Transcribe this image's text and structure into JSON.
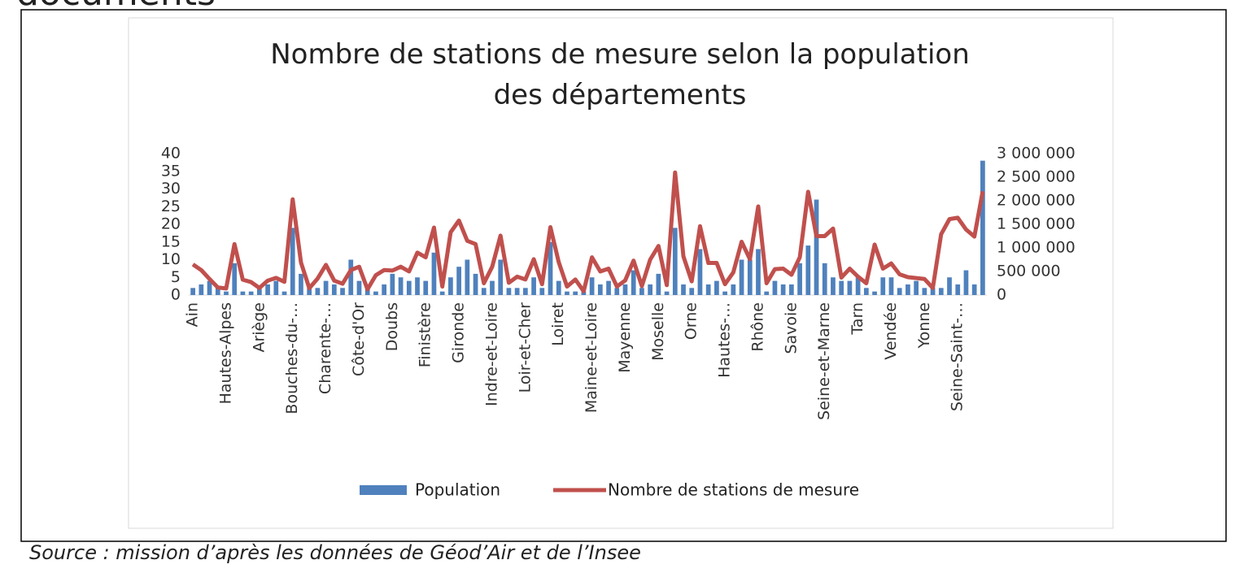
{
  "heading": "documents",
  "source": "Source : mission d’après les données de Géod’Air et de l’Insee",
  "chart_data": {
    "type": "bar",
    "title": [
      "Nombre de stations de mesure selon la population",
      "des départements"
    ],
    "categories": [
      "Ain",
      null,
      null,
      null,
      "Hautes-Alpes",
      null,
      null,
      null,
      "Ariège",
      null,
      null,
      null,
      "Bouches-du-…",
      null,
      null,
      null,
      "Charente-…",
      null,
      null,
      null,
      "Côte-d'Or",
      null,
      null,
      null,
      "Doubs",
      null,
      null,
      null,
      "Finistère",
      null,
      null,
      null,
      "Gironde",
      null,
      null,
      null,
      "Indre-et-Loire",
      null,
      null,
      null,
      "Loir-et-Cher",
      null,
      null,
      null,
      "Loiret",
      null,
      null,
      null,
      "Maine-et-Loire",
      null,
      null,
      null,
      "Mayenne",
      null,
      null,
      null,
      "Moselle",
      null,
      null,
      null,
      "Orne",
      null,
      null,
      null,
      "Hautes-…",
      null,
      null,
      null,
      "Rhône",
      null,
      null,
      null,
      "Savoie",
      null,
      null,
      null,
      "Seine-et-Marne",
      null,
      null,
      null,
      "Tarn",
      null,
      null,
      null,
      "Vendée",
      null,
      null,
      null,
      "Yonne",
      null,
      null,
      null,
      "Seine-Saint-…",
      null,
      null,
      null
    ],
    "series": [
      {
        "name": "Population",
        "color": "#4f81bd",
        "type": "bar",
        "values": [
          2,
          3,
          4,
          2,
          1,
          9,
          1,
          1,
          2,
          3,
          4,
          1,
          19,
          6,
          2,
          2,
          4,
          3,
          2,
          10,
          4,
          2,
          1,
          3,
          6,
          5,
          4,
          5,
          4,
          12,
          1,
          5,
          8,
          10,
          6,
          2,
          4,
          10,
          2,
          2,
          2,
          5,
          2,
          15,
          4,
          1,
          1,
          1,
          5,
          3,
          4,
          2,
          3,
          7,
          2,
          3,
          6,
          1,
          19,
          3,
          2,
          13,
          3,
          4,
          1,
          3,
          10,
          10,
          13,
          1,
          4,
          3,
          3,
          9,
          14,
          27,
          9,
          5,
          4,
          4,
          5,
          2,
          1,
          5,
          5,
          2,
          3,
          4,
          2,
          2,
          2,
          5,
          3,
          7,
          3,
          38
        ]
      },
      {
        "name": "Nombre de stations de mesure",
        "color": "#c0504d",
        "type": "line",
        "axis": "y2",
        "values": [
          650000,
          530000,
          340000,
          160000,
          140000,
          1080000,
          325000,
          275000,
          150000,
          305000,
          365000,
          280000,
          2030000,
          690000,
          145000,
          350000,
          640000,
          305000,
          240000,
          530000,
          600000,
          120000,
          420000,
          530000,
          520000,
          600000,
          500000,
          900000,
          800000,
          1430000,
          180000,
          1330000,
          1580000,
          1150000,
          1080000,
          250000,
          600000,
          1260000,
          260000,
          390000,
          330000,
          760000,
          230000,
          1440000,
          700000,
          180000,
          330000,
          80000,
          800000,
          500000,
          560000,
          180000,
          310000,
          730000,
          190000,
          750000,
          1040000,
          210000,
          2600000,
          820000,
          290000,
          1460000,
          680000,
          680000,
          230000,
          480000,
          1130000,
          760000,
          1880000,
          250000,
          550000,
          560000,
          430000,
          800000,
          2190000,
          1250000,
          1250000,
          1410000,
          370000,
          560000,
          390000,
          250000,
          1070000,
          560000,
          670000,
          440000,
          380000,
          360000,
          340000,
          150000,
          1290000,
          1610000,
          1640000,
          1390000,
          1240000,
          2200000
        ]
      }
    ],
    "ylim": [
      0,
      40
    ],
    "yticks": [
      0,
      5,
      10,
      15,
      20,
      25,
      30,
      35,
      40
    ],
    "y2lim": [
      0,
      3000000
    ],
    "y2ticks": [
      0,
      {
        "value": 500000,
        "label": "500 000"
      },
      {
        "value": 1000000,
        "label": "1 000 000"
      },
      {
        "value": 1500000,
        "label": "1 500 000"
      },
      {
        "value": 2000000,
        "label": "2 000 000"
      },
      {
        "value": 2500000,
        "label": "2 500 000"
      },
      {
        "value": 3000000,
        "label": "3 000 000"
      }
    ],
    "grid": false,
    "legend": "bottom"
  }
}
